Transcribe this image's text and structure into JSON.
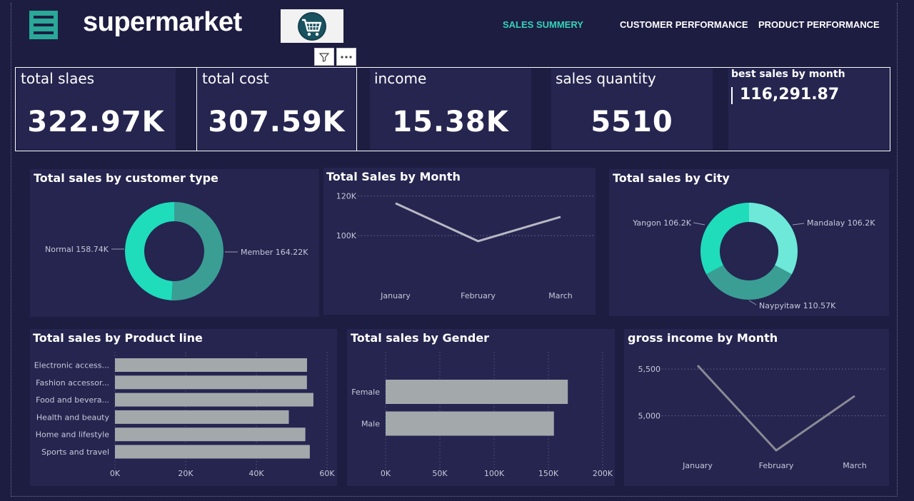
{
  "header": {
    "brand": "supermarket",
    "nav": [
      "SALES SUMMERY",
      "CUSTOMER PERFORMANCE",
      "PRODUCT PERFORMANCE"
    ],
    "active_nav": 0,
    "accent_color": "#35d2b8",
    "icons": [
      "hamburger-menu-icon",
      "shopping-cart-icon",
      "filter-icon",
      "more-options-icon"
    ]
  },
  "kpis": [
    {
      "label": "total slaes",
      "value": "322.97K"
    },
    {
      "label": "total cost",
      "value": "307.59K"
    },
    {
      "label": "income",
      "value": "15.38K"
    },
    {
      "label": "sales quantity",
      "value": "5510"
    },
    {
      "label": "best sales by month",
      "value": "116,291.87"
    }
  ],
  "chart_data": [
    {
      "type": "pie",
      "title": "Total sales by customer type",
      "labels": [
        "Member",
        "Normal"
      ],
      "values": [
        164.22,
        158.74
      ],
      "value_labels": [
        "Member 164.22K",
        "Normal 158.74K"
      ],
      "colors": [
        "#3a9e94",
        "#1fdcbb"
      ]
    },
    {
      "type": "line",
      "title": "Total Sales by Month",
      "categories": [
        "January",
        "February",
        "March"
      ],
      "values": [
        116291.87,
        97219.37,
        109455.51
      ],
      "ylim": [
        90000,
        122000
      ],
      "yticks": [
        100000,
        120000
      ],
      "ytick_labels": [
        "100K",
        "120K"
      ],
      "grid": true,
      "color": "#b8b8c4"
    },
    {
      "type": "pie",
      "title": "Total sales by City",
      "labels": [
        "Mandalay",
        "Naypyitaw",
        "Yangon"
      ],
      "values": [
        106.2,
        110.57,
        106.2
      ],
      "value_labels": [
        "Mandalay 106.2K",
        "Naypyitaw 110.57K",
        "Yangon 106.2K"
      ],
      "colors": [
        "#6ee8d8",
        "#3a9e94",
        "#1fdcbb"
      ]
    },
    {
      "type": "bar",
      "orientation": "horizontal",
      "title": "Total sales by Product line",
      "categories": [
        "Electronic access...",
        "Fashion accessor...",
        "Food and bevera...",
        "Health and beauty",
        "Home and lifestyle",
        "Sports and travel"
      ],
      "values": [
        54337.53,
        54305.9,
        56144.84,
        49193.74,
        53861.91,
        55122.83
      ],
      "xlim": [
        0,
        60000
      ],
      "xticks": [
        0,
        20000,
        40000,
        60000
      ],
      "xtick_labels": [
        "0K",
        "20K",
        "40K",
        "60K"
      ],
      "color": "#a3a9ab"
    },
    {
      "type": "bar",
      "orientation": "horizontal",
      "title": "Total sales by Gender",
      "categories": [
        "Female",
        "Male"
      ],
      "values": [
        167882.93,
        155083.82
      ],
      "xlim": [
        0,
        200000
      ],
      "xticks": [
        0,
        50000,
        100000,
        150000,
        200000
      ],
      "xtick_labels": [
        "0K",
        "50K",
        "100K",
        "150K",
        "200K"
      ],
      "color": "#a3a9ab"
    },
    {
      "type": "line",
      "title": "gross income by Month",
      "categories": [
        "January",
        "February",
        "March"
      ],
      "values": [
        5537.7,
        4629.5,
        5212.2
      ],
      "ylim": [
        4600,
        5600
      ],
      "yticks": [
        5000,
        5500
      ],
      "ytick_labels": [
        "5,000",
        "5,500"
      ],
      "grid": true,
      "color": "#8a8a96"
    }
  ]
}
